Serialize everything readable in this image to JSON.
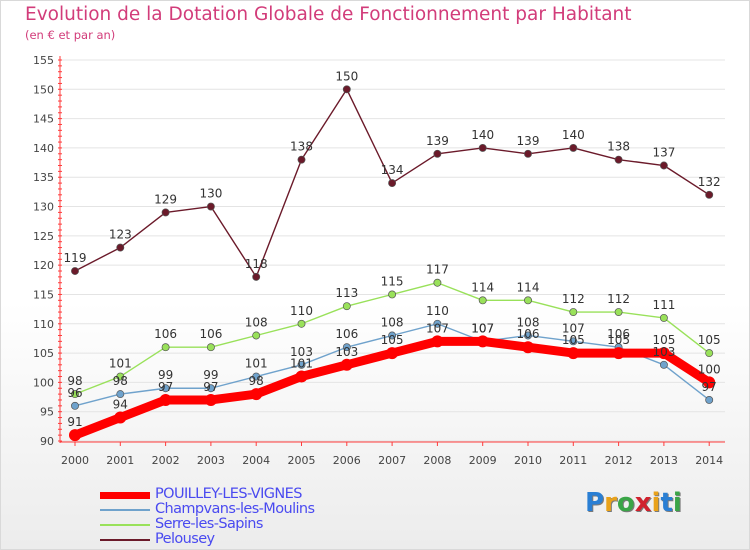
{
  "title": "Evolution de la Dotation Globale de Fonctionnement par Habitant",
  "subtitle": "(en € et par an)",
  "chart_data": {
    "type": "line",
    "title": "Evolution de la Dotation Globale de Fonctionnement par Habitant",
    "subtitle": "(en € et par an)",
    "xlabel": "",
    "ylabel": "",
    "ylim": [
      90,
      155
    ],
    "yticks": [
      90,
      95,
      100,
      105,
      110,
      115,
      120,
      125,
      130,
      135,
      140,
      145,
      150,
      155
    ],
    "categories": [
      "2000",
      "2001",
      "2002",
      "2003",
      "2004",
      "2005",
      "2006",
      "2007",
      "2008",
      "2009",
      "2010",
      "2011",
      "2012",
      "2013",
      "2014"
    ],
    "series": [
      {
        "name": "Pelousey",
        "color": "#6b1a2a",
        "values": [
          119,
          123,
          129,
          130,
          118,
          138,
          150,
          134,
          139,
          140,
          139,
          140,
          138,
          137,
          132
        ]
      },
      {
        "name": "Serre-les-Sapins",
        "color": "#99e15a",
        "values": [
          98,
          101,
          106,
          106,
          108,
          110,
          113,
          115,
          117,
          114,
          114,
          112,
          112,
          111,
          105
        ]
      },
      {
        "name": "Champvans-les-Moulins",
        "color": "#6fa2cc",
        "values": [
          96,
          98,
          99,
          99,
          101,
          103,
          106,
          108,
          110,
          107,
          108,
          107,
          106,
          103,
          97
        ]
      },
      {
        "name": "POUILLEY-LES-VIGNES",
        "color": "#ff0000",
        "values": [
          91,
          94,
          97,
          97,
          98,
          101,
          103,
          105,
          107,
          107,
          106,
          105,
          105,
          105,
          100
        ]
      }
    ],
    "legend": [
      {
        "name": "POUILLEY-LES-VIGNES",
        "color": "#ff0000"
      },
      {
        "name": "Champvans-les-Moulins",
        "color": "#6fa2cc"
      },
      {
        "name": "Serre-les-Sapins",
        "color": "#99e15a"
      },
      {
        "name": "Pelousey",
        "color": "#6b1a2a"
      }
    ],
    "legend_position": "bottom-left"
  },
  "logo": {
    "letters": [
      "P",
      "r",
      "o",
      "x",
      "i",
      "t",
      "i"
    ],
    "colors": [
      "#2a7fd4",
      "#e9a21a",
      "#3aa547",
      "#d0222e",
      "#e9a21a",
      "#2a7fd4",
      "#3aa547"
    ]
  }
}
